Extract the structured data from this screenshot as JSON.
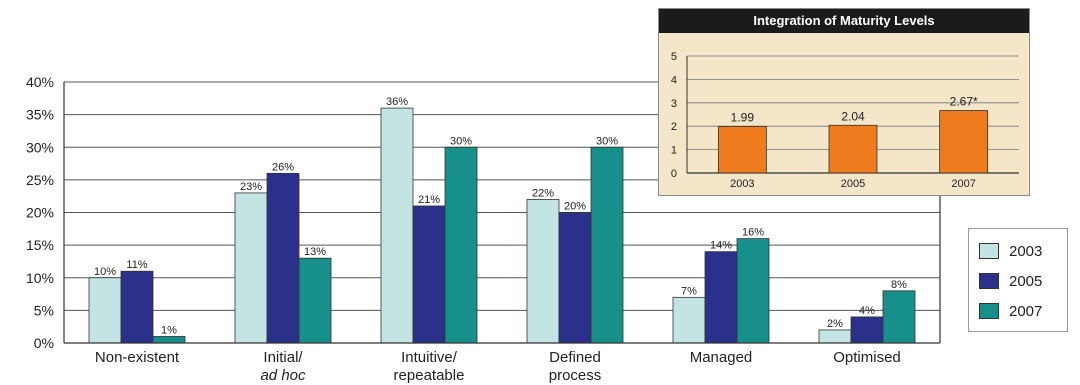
{
  "chart_data": [
    {
      "type": "bar",
      "categories": [
        [
          "Non-existent"
        ],
        [
          "Initial/",
          "ad hoc"
        ],
        [
          "Intuitive/",
          "repeatable"
        ],
        [
          "Defined",
          "process"
        ],
        [
          "Managed"
        ],
        [
          "Optimised"
        ]
      ],
      "series": [
        {
          "name": "2003",
          "color": "#c4e4e4",
          "values": [
            10,
            23,
            36,
            22,
            7,
            2
          ]
        },
        {
          "name": "2005",
          "color": "#2b318a",
          "values": [
            11,
            26,
            21,
            20,
            14,
            4
          ]
        },
        {
          "name": "2007",
          "color": "#17908c",
          "values": [
            1,
            13,
            30,
            30,
            16,
            8
          ]
        }
      ],
      "data_labels": {
        "2003": [
          "10%",
          "23%",
          "36%",
          "22%",
          "7%",
          "2%"
        ],
        "2005": [
          "11%",
          "26%",
          "21%",
          "20%",
          "14%",
          "4%"
        ],
        "2007": [
          "1%",
          "13%",
          "30%",
          "30%",
          "16%",
          "8%"
        ]
      },
      "ylim": [
        0,
        40
      ],
      "yticks": [
        "0%",
        "5%",
        "10%",
        "15%",
        "20%",
        "25%",
        "30%",
        "35%",
        "40%"
      ],
      "grid": true,
      "legend_position": "right"
    },
    {
      "type": "bar",
      "title": "Integration of Maturity Levels",
      "categories": [
        "2003",
        "2005",
        "2007"
      ],
      "values": [
        1.99,
        2.04,
        2.67
      ],
      "value_labels": [
        "1.99",
        "2.04",
        "2.67*"
      ],
      "color": "#f07a1e",
      "ylim": [
        0,
        5
      ],
      "yticks": [
        "0",
        "1",
        "2",
        "3",
        "4",
        "5"
      ],
      "grid": true
    }
  ]
}
